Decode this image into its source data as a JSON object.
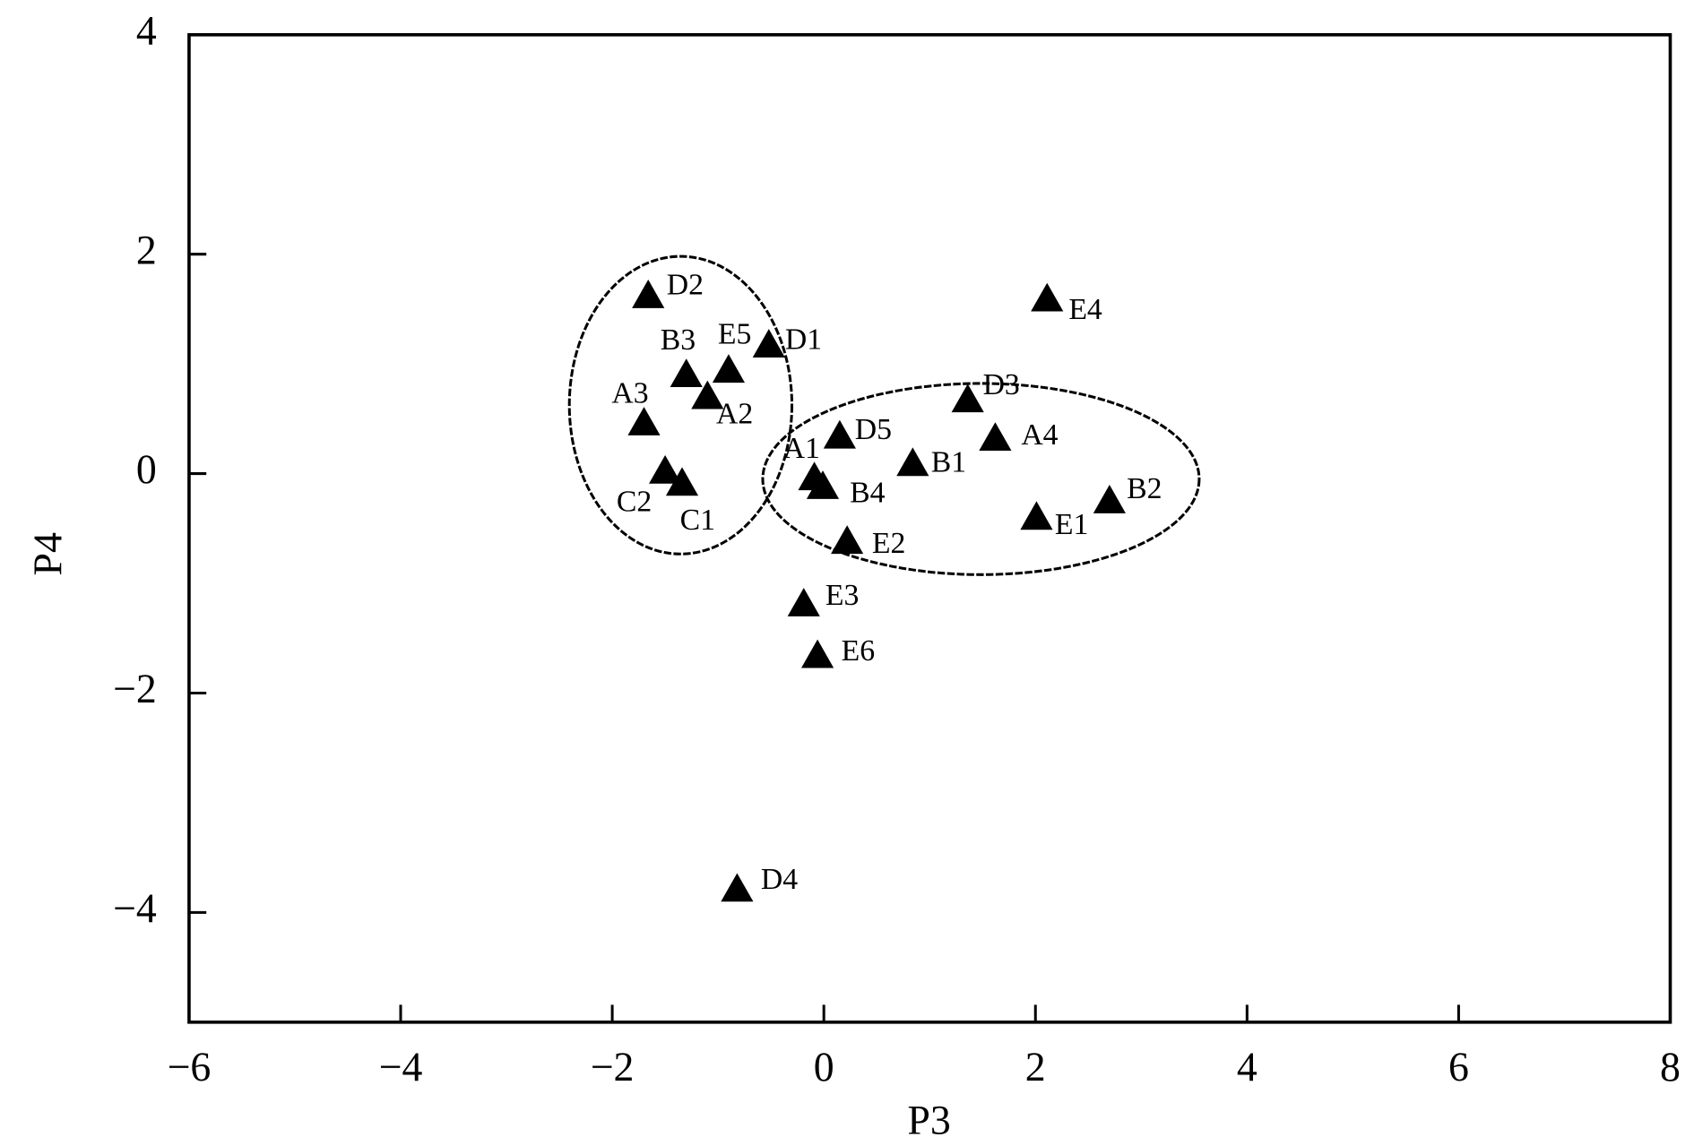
{
  "chart_data": {
    "type": "scatter",
    "x_label": "P3",
    "y_label": "P4",
    "labels": [
      "D2",
      "B3",
      "E5",
      "D1",
      "A2",
      "A3",
      "C2",
      "C1",
      "A1",
      "B4",
      "D5",
      "B1",
      "D3",
      "A4",
      "E1",
      "B2",
      "E2",
      "E3",
      "E6",
      "E4",
      "D4"
    ],
    "x": [
      -1.66,
      -1.3,
      -0.9,
      -0.52,
      -1.1,
      -1.7,
      -1.5,
      -1.34,
      -0.09,
      -0.01,
      0.15,
      0.84,
      1.36,
      1.62,
      2.01,
      2.7,
      0.22,
      -0.19,
      -0.06,
      2.11,
      -0.82
    ],
    "y": [
      1.62,
      0.9,
      0.94,
      1.17,
      0.7,
      0.46,
      0.02,
      -0.09,
      -0.04,
      -0.12,
      0.34,
      0.09,
      0.67,
      0.32,
      -0.4,
      -0.25,
      -0.62,
      -1.19,
      -1.66,
      1.59,
      -3.79
    ],
    "color": "#000000",
    "xlim": [
      -6,
      8
    ],
    "ylim": [
      -5,
      4
    ],
    "xticks": [
      {
        "value": -6,
        "label": "−6"
      },
      {
        "value": -4,
        "label": "−4"
      },
      {
        "value": -2,
        "label": "−2"
      },
      0,
      2,
      4,
      6,
      8
    ],
    "yticks": [
      {
        "value": -4,
        "label": "−4"
      },
      {
        "value": -2,
        "label": "−2"
      },
      0,
      2,
      4
    ],
    "grid": false
  }
}
